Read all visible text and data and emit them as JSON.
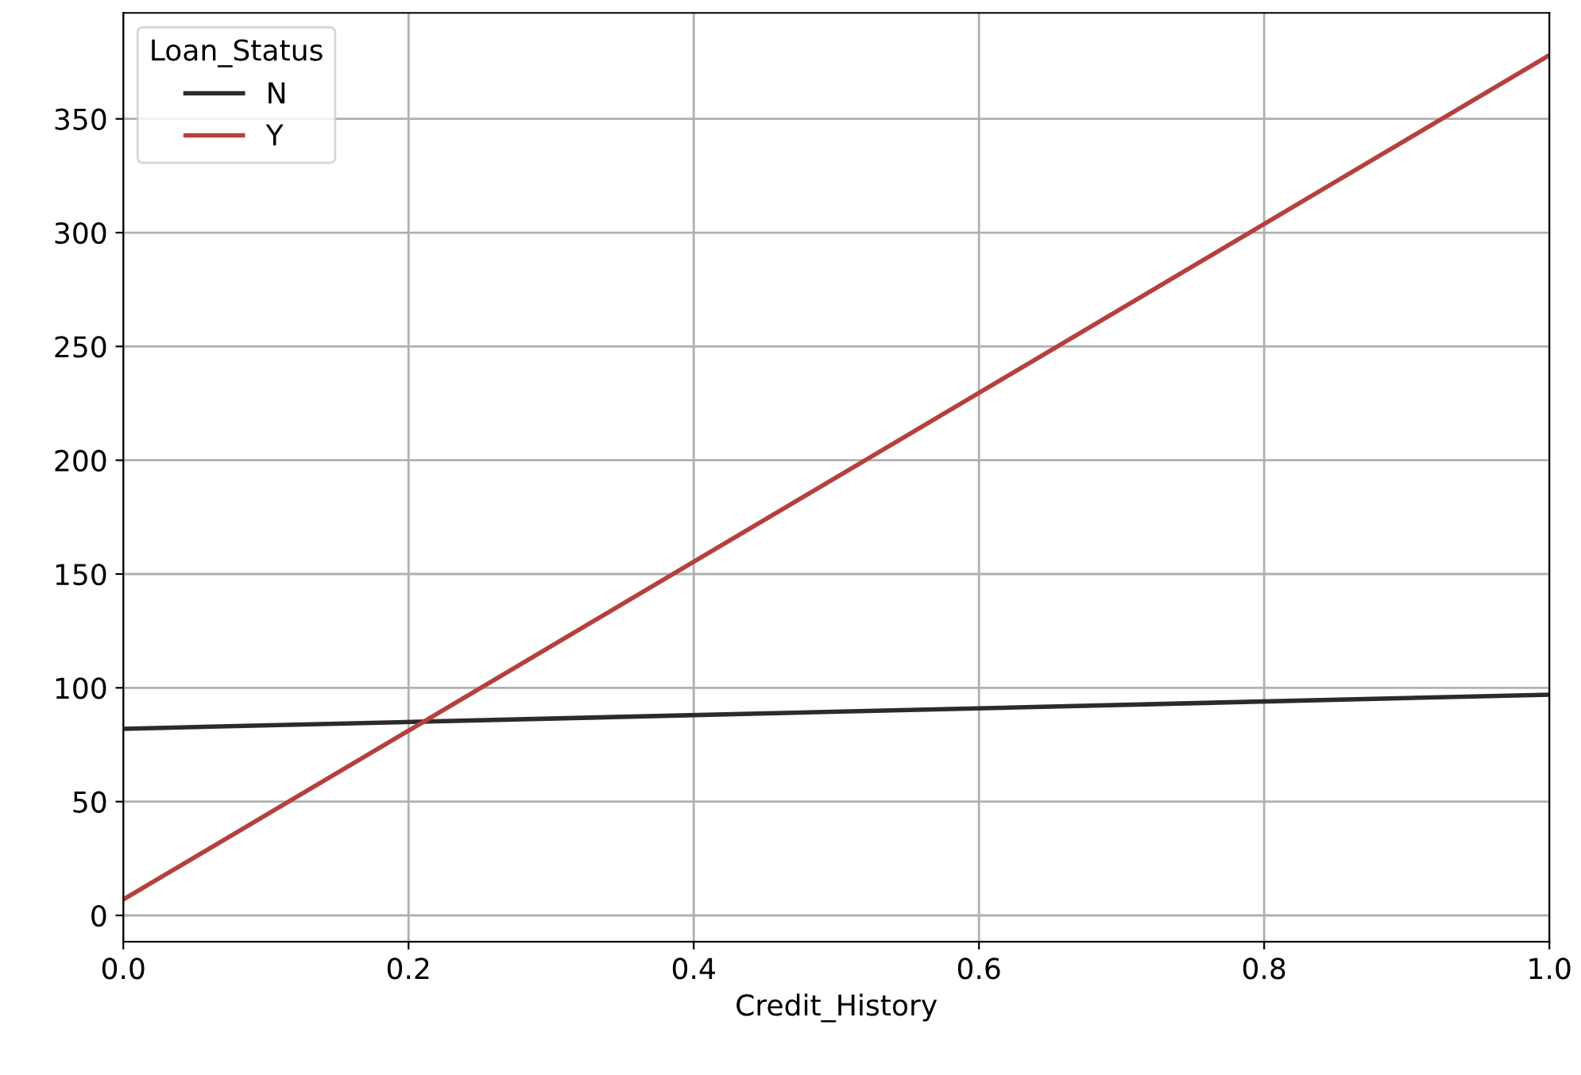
{
  "chart_data": {
    "type": "line",
    "xlabel": "Credit_History",
    "legend_title": "Loan_Status",
    "x": [
      0.0,
      1.0
    ],
    "series": [
      {
        "name": "N",
        "color": "#2b2b2b",
        "values": [
          82,
          97
        ]
      },
      {
        "name": "Y",
        "color": "#b5403d",
        "values": [
          7,
          378
        ]
      }
    ],
    "xlim": [
      0.0,
      1.0
    ],
    "xticks": [
      {
        "value": 0.0,
        "label": "0.0"
      },
      {
        "value": 0.2,
        "label": "0.2"
      },
      {
        "value": 0.4,
        "label": "0.4"
      },
      {
        "value": 0.6,
        "label": "0.6"
      },
      {
        "value": 0.8,
        "label": "0.8"
      },
      {
        "value": 1.0,
        "label": "1.0"
      }
    ],
    "ylim": [
      -11.55,
      396.55
    ],
    "yticks": [
      0,
      50,
      100,
      150,
      200,
      250,
      300,
      350
    ],
    "grid": true,
    "legend": "top left"
  }
}
